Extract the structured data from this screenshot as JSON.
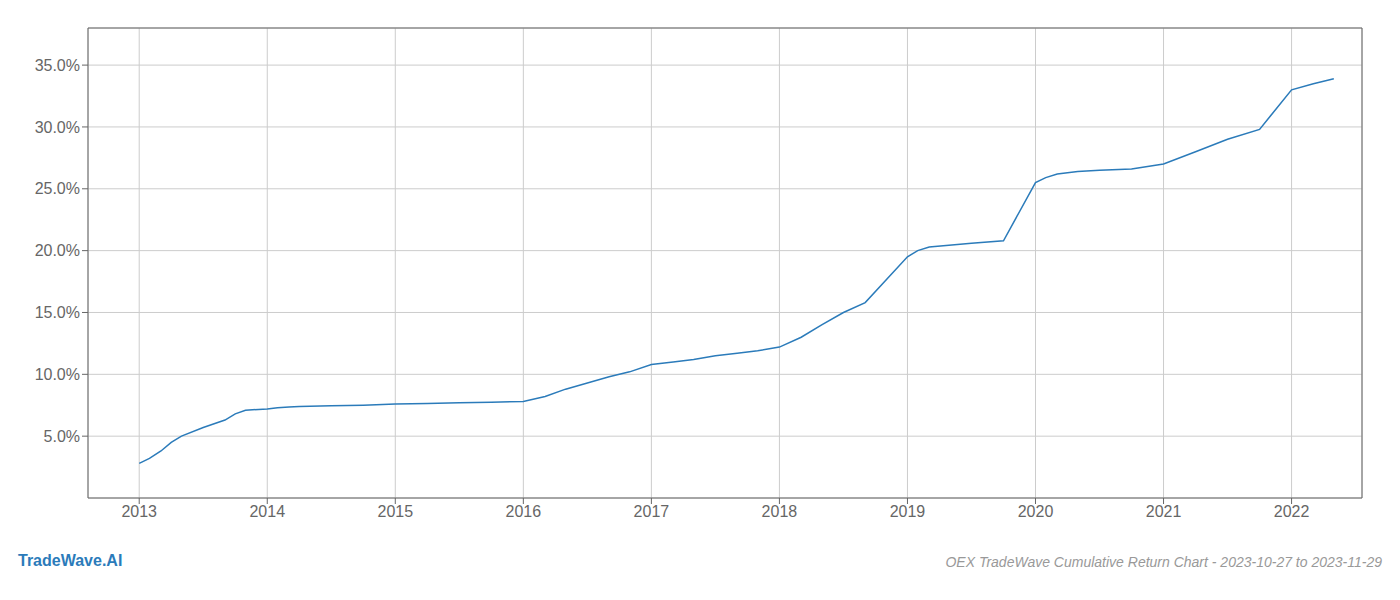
{
  "chart_data": {
    "type": "line",
    "title": "OEX TradeWave Cumulative Return Chart - 2023-10-27 to 2023-11-29",
    "annotations": [
      {
        "text": "TradeWave.AI",
        "color": "#2b7bba"
      }
    ],
    "x": [
      2013.0,
      2013.08,
      2013.17,
      2013.25,
      2013.33,
      2013.5,
      2013.67,
      2013.75,
      2013.83,
      2014.0,
      2014.08,
      2014.17,
      2014.25,
      2014.5,
      2014.75,
      2015.0,
      2015.25,
      2015.5,
      2015.75,
      2016.0,
      2016.17,
      2016.33,
      2016.5,
      2016.67,
      2016.83,
      2017.0,
      2017.17,
      2017.33,
      2017.5,
      2017.67,
      2017.83,
      2018.0,
      2018.17,
      2018.33,
      2018.5,
      2018.67,
      2019.0,
      2019.08,
      2019.17,
      2019.5,
      2019.75,
      2020.0,
      2020.08,
      2020.17,
      2020.33,
      2020.5,
      2020.75,
      2021.0,
      2021.25,
      2021.5,
      2021.75,
      2022.0,
      2022.17,
      2022.33
    ],
    "values": [
      2.8,
      3.2,
      3.8,
      4.5,
      5.0,
      5.7,
      6.3,
      6.8,
      7.1,
      7.2,
      7.3,
      7.35,
      7.4,
      7.45,
      7.5,
      7.6,
      7.65,
      7.7,
      7.75,
      7.8,
      8.2,
      8.8,
      9.3,
      9.8,
      10.2,
      10.8,
      11.0,
      11.2,
      11.5,
      11.7,
      11.9,
      12.2,
      13.0,
      14.0,
      15.0,
      15.8,
      19.5,
      20.0,
      20.3,
      20.6,
      20.8,
      25.5,
      25.9,
      26.2,
      26.4,
      26.5,
      26.6,
      27.0,
      28.0,
      29.0,
      29.8,
      33.0,
      33.5,
      33.9
    ],
    "color": "#2b7bba",
    "xlim": [
      2012.6,
      2022.55
    ],
    "xticks": [
      2013,
      2014,
      2015,
      2016,
      2017,
      2018,
      2019,
      2020,
      2021,
      2022
    ],
    "ylim": [
      0,
      38
    ],
    "yticks": [
      {
        "value": 5.0,
        "label": "5.0%"
      },
      {
        "value": 10.0,
        "label": "10.0%"
      },
      {
        "value": 15.0,
        "label": "15.0%"
      },
      {
        "value": 20.0,
        "label": "20.0%"
      },
      {
        "value": 25.0,
        "label": "25.0%"
      },
      {
        "value": 30.0,
        "label": "30.0%"
      },
      {
        "value": 35.0,
        "label": "35.0%"
      }
    ],
    "grid": true
  }
}
